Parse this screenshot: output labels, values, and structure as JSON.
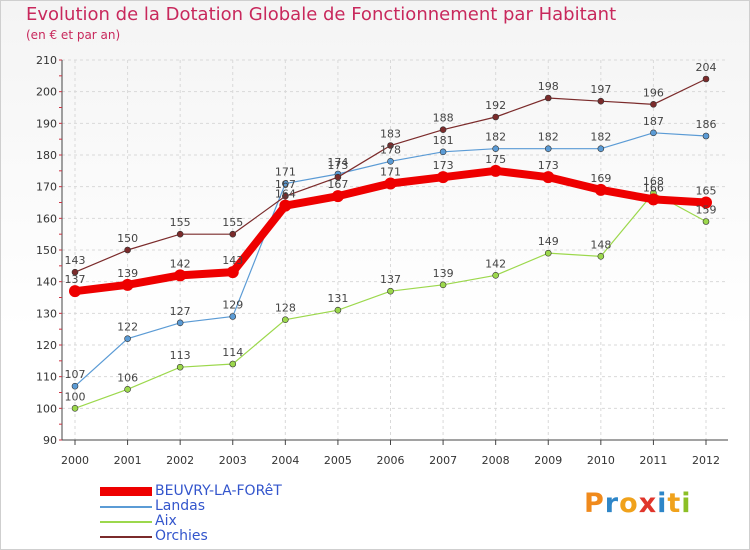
{
  "title": "Evolution de la Dotation Globale de Fonctionnement par Habitant",
  "subtitle": "(en € et par an)",
  "logo": "Proxiti",
  "chart_data": {
    "type": "line",
    "title": "Evolution de la Dotation Globale de Fonctionnement par Habitant",
    "ylabel": "(en € et par an)",
    "xlabel": "",
    "ylim": [
      90,
      210
    ],
    "yticks": [
      90,
      100,
      110,
      120,
      130,
      140,
      150,
      160,
      170,
      180,
      190,
      200,
      210
    ],
    "categories": [
      "2000",
      "2001",
      "2002",
      "2003",
      "2004",
      "2005",
      "2006",
      "2007",
      "2008",
      "2009",
      "2010",
      "2011",
      "2012"
    ],
    "grid": true,
    "legend_position": "bottom-left",
    "series": [
      {
        "name": "BEUVRY-LA-FORêT",
        "color": "#ee0000",
        "values": [
          137,
          139,
          142,
          143,
          164,
          167,
          171,
          173,
          175,
          173,
          169,
          166,
          165
        ],
        "labels": [
          "137",
          "139",
          "142",
          "143",
          "164",
          "167",
          "171",
          "173",
          "175",
          "173",
          "169",
          "166",
          "165"
        ]
      },
      {
        "name": "Landas",
        "color": "#5b9bd5",
        "values": [
          107,
          122,
          127,
          129,
          171,
          174,
          178,
          181,
          182,
          182,
          182,
          187,
          186
        ],
        "labels": [
          "107",
          "122",
          "127",
          "129",
          "171",
          "174",
          "178",
          "181",
          "182",
          "182",
          "182",
          "187",
          "186"
        ]
      },
      {
        "name": "Aix",
        "color": "#9cd84c",
        "values": [
          100,
          106,
          113,
          114,
          128,
          131,
          137,
          139,
          142,
          149,
          148,
          168,
          159
        ],
        "labels": [
          "100",
          "106",
          "113",
          "114",
          "128",
          "131",
          "137",
          "139",
          "142",
          "149",
          "148",
          "168",
          "159"
        ]
      },
      {
        "name": "Orchies",
        "color": "#7b2b2b",
        "values": [
          143,
          150,
          155,
          155,
          167,
          173,
          183,
          188,
          192,
          198,
          197,
          196,
          204
        ],
        "labels": [
          "143",
          "150",
          "155",
          "155",
          "167",
          "173",
          "183",
          "188",
          "192",
          "198",
          "197",
          "196",
          "204"
        ]
      }
    ]
  }
}
